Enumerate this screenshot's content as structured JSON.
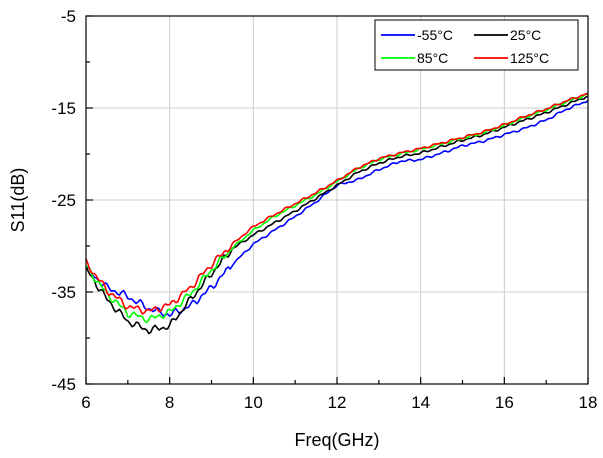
{
  "chart_data": {
    "type": "line",
    "title": "",
    "xlabel": "Freq(GHz)",
    "ylabel": "S11(dB)",
    "xlim": [
      6,
      18
    ],
    "ylim": [
      -45,
      -5
    ],
    "xticks": [
      6,
      8,
      10,
      12,
      14,
      16,
      18
    ],
    "yticks": [
      -5,
      -15,
      -25,
      -35,
      -45
    ],
    "xtick_labels": [
      "6",
      "8",
      "10",
      "12",
      "14",
      "16",
      "18"
    ],
    "ytick_labels": [
      "-5",
      "-15",
      "-25",
      "-35",
      "-45"
    ],
    "grid": true,
    "legend_position": "top-right",
    "series": [
      {
        "name": "-55°C",
        "color": "#0000ff",
        "x": [
          6.0,
          6.5,
          7.0,
          7.5,
          8.0,
          8.5,
          9.0,
          9.5,
          10.0,
          10.5,
          11.0,
          11.5,
          12.0,
          12.5,
          13.0,
          13.5,
          14.0,
          14.5,
          15.0,
          15.5,
          16.0,
          16.5,
          17.0,
          17.5,
          18.0
        ],
        "y": [
          -32.5,
          -34.5,
          -35.5,
          -36.8,
          -37.5,
          -36.5,
          -34.5,
          -32.0,
          -29.8,
          -28.3,
          -26.8,
          -25.2,
          -23.4,
          -22.8,
          -21.7,
          -20.8,
          -20.6,
          -19.9,
          -19.1,
          -18.6,
          -17.9,
          -17.2,
          -16.3,
          -15.1,
          -14.2
        ]
      },
      {
        "name": "25°C",
        "color": "#000000",
        "x": [
          6.0,
          6.5,
          7.0,
          7.5,
          8.0,
          8.5,
          9.0,
          9.5,
          10.0,
          10.5,
          11.0,
          11.5,
          12.0,
          12.5,
          13.0,
          13.5,
          14.0,
          14.5,
          15.0,
          15.5,
          16.0,
          16.5,
          17.0,
          17.5,
          18.0
        ],
        "y": [
          -32.5,
          -35.8,
          -38.2,
          -39.2,
          -38.7,
          -35.8,
          -33.0,
          -30.3,
          -28.8,
          -27.5,
          -26.2,
          -24.8,
          -23.4,
          -22.0,
          -21.0,
          -20.3,
          -19.9,
          -19.2,
          -18.5,
          -17.9,
          -17.1,
          -16.3,
          -15.5,
          -14.6,
          -13.7
        ]
      },
      {
        "name": "85°C",
        "color": "#00ff00",
        "x": [
          6.0,
          6.5,
          7.0,
          7.5,
          8.0,
          8.5,
          9.0,
          9.5,
          10.0,
          10.5,
          11.0,
          11.5,
          12.0,
          12.5,
          13.0,
          13.5,
          14.0,
          14.5,
          15.0,
          15.5,
          16.0,
          16.5,
          17.0,
          17.5,
          18.0
        ],
        "y": [
          -32.2,
          -35.2,
          -37.3,
          -38.0,
          -37.2,
          -35.2,
          -32.6,
          -30.2,
          -28.3,
          -26.8,
          -25.6,
          -24.4,
          -23.0,
          -21.6,
          -20.6,
          -20.0,
          -19.5,
          -18.9,
          -18.3,
          -17.7,
          -16.9,
          -16.0,
          -15.2,
          -14.3,
          -13.5
        ]
      },
      {
        "name": "125°C",
        "color": "#ff0000",
        "x": [
          6.0,
          6.5,
          7.0,
          7.5,
          8.0,
          8.5,
          9.0,
          9.5,
          10.0,
          10.5,
          11.0,
          11.5,
          12.0,
          12.5,
          13.0,
          13.5,
          14.0,
          14.5,
          15.0,
          15.5,
          16.0,
          16.5,
          17.0,
          17.5,
          18.0
        ],
        "y": [
          -31.8,
          -34.8,
          -36.6,
          -37.1,
          -36.4,
          -34.5,
          -32.0,
          -29.8,
          -27.9,
          -26.6,
          -25.4,
          -24.2,
          -22.9,
          -21.5,
          -20.5,
          -19.9,
          -19.4,
          -18.8,
          -18.2,
          -17.6,
          -16.8,
          -15.9,
          -15.1,
          -14.2,
          -13.4
        ]
      }
    ]
  }
}
